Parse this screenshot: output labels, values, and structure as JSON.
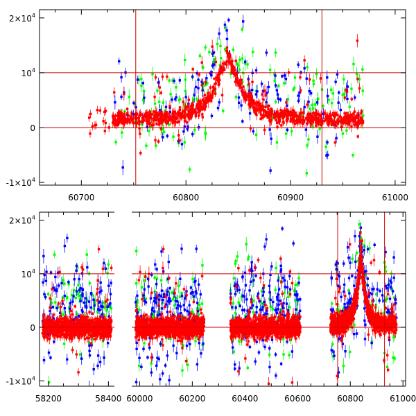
{
  "chart_data": [
    {
      "type": "scatter",
      "title": "",
      "xlabel": "",
      "ylabel": "",
      "xlim": [
        60660,
        61010
      ],
      "ylim": [
        -10500,
        21500
      ],
      "x_ticks": [
        60700,
        60800,
        60900,
        61000
      ],
      "x_tick_labels": [
        "60700",
        "60800",
        "60900",
        "61000"
      ],
      "y_ticks": [
        -10000,
        0,
        10000,
        20000
      ],
      "y_tick_labels": [
        {
          "prefix": "-1×10",
          "exp": "4"
        },
        {
          "prefix": "0",
          "exp": ""
        },
        {
          "prefix": "10",
          "exp": "4"
        },
        {
          "prefix": "2×10",
          "exp": "4"
        }
      ],
      "reference_lines": {
        "horizontal": [
          0,
          10000
        ],
        "vertical": [
          60752,
          60930
        ]
      },
      "series": [
        {
          "name": "green",
          "color": "#00ff00"
        },
        {
          "name": "blue",
          "color": "#0000ff"
        },
        {
          "name": "red",
          "color": "#ff0000"
        }
      ],
      "baseline_range": [
        60730,
        60970
      ],
      "peak": {
        "x": 60840,
        "y": 14000
      }
    },
    {
      "type": "scatter",
      "title": "",
      "xlabel": "",
      "ylabel": "",
      "segments": [
        {
          "xlim": [
            58170,
            58420
          ],
          "ticks": [
            58200,
            58400
          ],
          "tick_labels": [
            "58200",
            "58400"
          ],
          "data_range": [
            58180,
            58410
          ],
          "groups": [
            {
              "xs": 58180,
              "xe": 58410
            }
          ]
        },
        {
          "xlim": [
            59970,
            61010
          ],
          "ticks": [
            60000,
            60200,
            60400,
            60600,
            60800,
            61000
          ],
          "tick_labels": [
            "60000",
            "60200",
            "60400",
            "60600",
            "60800",
            "61000"
          ],
          "data_range": [
            59985,
            60990
          ],
          "groups": [
            {
              "xs": 59985,
              "xe": 60245
            },
            {
              "xs": 60345,
              "xe": 60610
            },
            {
              "xs": 60725,
              "xe": 60975
            }
          ]
        }
      ],
      "ylim": [
        -11000,
        21500
      ],
      "y_ticks": [
        -10000,
        0,
        10000,
        20000
      ],
      "y_tick_labels": [
        {
          "prefix": "-1×10",
          "exp": "4"
        },
        {
          "prefix": "0",
          "exp": ""
        },
        {
          "prefix": "10",
          "exp": "4"
        },
        {
          "prefix": "2×10",
          "exp": "4"
        }
      ],
      "reference_lines": {
        "horizontal": [
          0,
          10000
        ],
        "vertical": [
          60752,
          60930
        ]
      },
      "series": [
        {
          "name": "green",
          "color": "#00ff00"
        },
        {
          "name": "blue",
          "color": "#0000ff"
        },
        {
          "name": "red",
          "color": "#ff0000"
        }
      ],
      "peak": {
        "x": 60840,
        "y": 14000
      }
    }
  ]
}
